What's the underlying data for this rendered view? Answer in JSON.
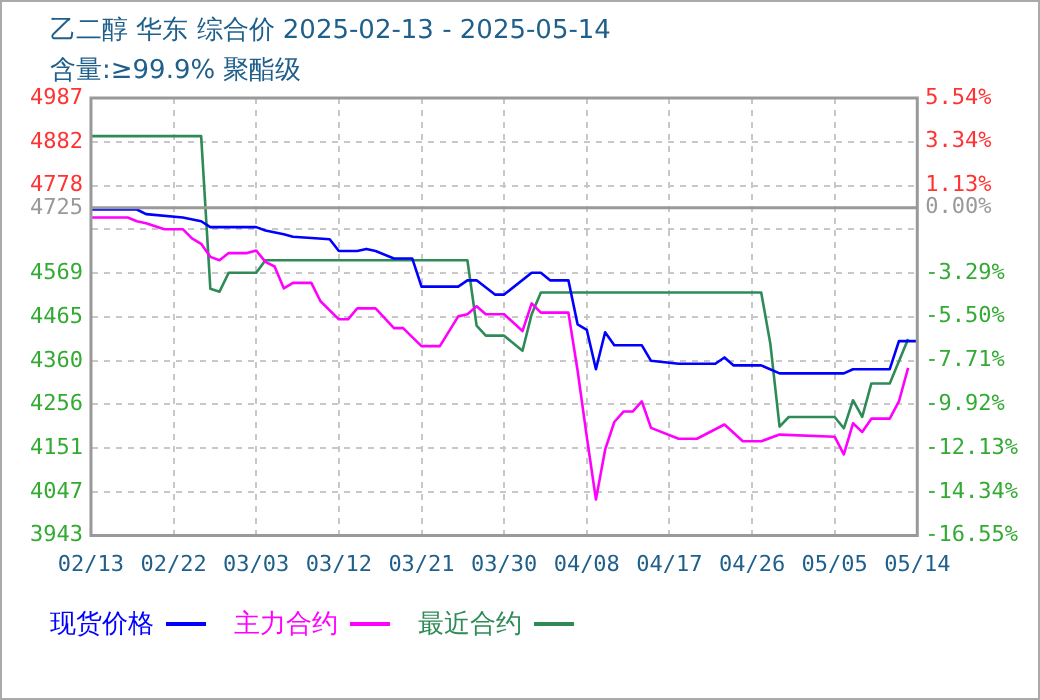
{
  "chart_data": {
    "type": "line",
    "title": "乙二醇 华东 综合价 2025-02-13 - 2025-05-14",
    "subtitle": "含量:≥99.9% 聚酯级",
    "xlim": [
      "2025-02-13",
      "2025-05-14"
    ],
    "xticks": [
      {
        "value": "2025-02-13",
        "label": "02/13"
      },
      {
        "value": "2025-02-22",
        "label": "02/22"
      },
      {
        "value": "2025-03-03",
        "label": "03/03"
      },
      {
        "value": "2025-03-12",
        "label": "03/12"
      },
      {
        "value": "2025-03-21",
        "label": "03/21"
      },
      {
        "value": "2025-03-30",
        "label": "03/30"
      },
      {
        "value": "2025-04-08",
        "label": "04/08"
      },
      {
        "value": "2025-04-17",
        "label": "04/17"
      },
      {
        "value": "2025-04-26",
        "label": "04/26"
      },
      {
        "value": "2025-05-05",
        "label": "05/05"
      },
      {
        "value": "2025-05-14",
        "label": "05/14"
      }
    ],
    "ylim": [
      3943,
      4987
    ],
    "yticks": [
      3943,
      4047,
      4151,
      4256,
      4360,
      4465,
      4569,
      {
        "value": 4674,
        "label": null
      },
      4725,
      4778,
      4882,
      4987
    ],
    "y2lim": [
      -16.55,
      5.54
    ],
    "y2ticks": [
      {
        "value": -16.55,
        "label": "-16.55%"
      },
      {
        "value": -14.34,
        "label": "-14.34%"
      },
      {
        "value": -12.13,
        "label": "-12.13%"
      },
      {
        "value": -9.92,
        "label": "-9.92%"
      },
      {
        "value": -7.71,
        "label": "-7.71%"
      },
      {
        "value": -5.5,
        "label": "-5.50%"
      },
      {
        "value": -3.29,
        "label": "-3.29%"
      },
      {
        "value": 0,
        "label": "0.00%"
      },
      {
        "value": 1.13,
        "label": "1.13%"
      },
      {
        "value": 3.34,
        "label": "3.34%"
      },
      {
        "value": 5.54,
        "label": "5.54%"
      }
    ],
    "ref_lines": [
      {
        "axis": "y",
        "value": 4725,
        "color": "#999999"
      }
    ],
    "grid": true,
    "legend": "bottom",
    "marker": "none",
    "line_style": "solid",
    "series": [
      {
        "name": "现货价格",
        "color": "#0000ff",
        "x": [
          "2025-02-13",
          "2025-02-18",
          "2025-02-19",
          "2025-02-23",
          "2025-02-25",
          "2025-02-26",
          "2025-03-03",
          "2025-03-04",
          "2025-03-06",
          "2025-03-07",
          "2025-03-11",
          "2025-03-12",
          "2025-03-14",
          "2025-03-15",
          "2025-03-16",
          "2025-03-18",
          "2025-03-20",
          "2025-03-21",
          "2025-03-25",
          "2025-03-26",
          "2025-03-27",
          "2025-03-29",
          "2025-03-30",
          "2025-04-02",
          "2025-04-03",
          "2025-04-04",
          "2025-04-06",
          "2025-04-07",
          "2025-04-08",
          "2025-04-09",
          "2025-04-10",
          "2025-04-11",
          "2025-04-14",
          "2025-04-15",
          "2025-04-18",
          "2025-04-22",
          "2025-04-23",
          "2025-04-24",
          "2025-04-27",
          "2025-04-29",
          "2025-05-06",
          "2025-05-07",
          "2025-05-11",
          "2025-05-12",
          "2025-05-14"
        ],
        "values": [
          4721,
          4721,
          4710,
          4702,
          4693,
          4679,
          4679,
          4671,
          4662,
          4656,
          4650,
          4622,
          4622,
          4627,
          4622,
          4604,
          4604,
          4537,
          4537,
          4552,
          4552,
          4518,
          4518,
          4570,
          4570,
          4552,
          4552,
          4447,
          4434,
          4340,
          4428,
          4397,
          4397,
          4360,
          4353,
          4353,
          4368,
          4349,
          4349,
          4330,
          4330,
          4340,
          4340,
          4407,
          4407
        ]
      },
      {
        "name": "主力合约",
        "color": "#ff00ff",
        "x": [
          "2025-02-13",
          "2025-02-17",
          "2025-02-18",
          "2025-02-19",
          "2025-02-21",
          "2025-02-23",
          "2025-02-24",
          "2025-02-25",
          "2025-02-26",
          "2025-02-27",
          "2025-02-28",
          "2025-03-02",
          "2025-03-03",
          "2025-03-04",
          "2025-03-05",
          "2025-03-06",
          "2025-03-07",
          "2025-03-09",
          "2025-03-10",
          "2025-03-12",
          "2025-03-13",
          "2025-03-14",
          "2025-03-16",
          "2025-03-18",
          "2025-03-19",
          "2025-03-21",
          "2025-03-23",
          "2025-03-25",
          "2025-03-26",
          "2025-03-27",
          "2025-03-28",
          "2025-03-30",
          "2025-04-01",
          "2025-04-02",
          "2025-04-03",
          "2025-04-06",
          "2025-04-07",
          "2025-04-08",
          "2025-04-09",
          "2025-04-10",
          "2025-04-11",
          "2025-04-12",
          "2025-04-13",
          "2025-04-14",
          "2025-04-15",
          "2025-04-18",
          "2025-04-20",
          "2025-04-23",
          "2025-04-25",
          "2025-04-27",
          "2025-04-29",
          "2025-05-05",
          "2025-05-06",
          "2025-05-07",
          "2025-05-08",
          "2025-05-09",
          "2025-05-11",
          "2025-05-12",
          "2025-05-13"
        ],
        "values": [
          4702,
          4702,
          4693,
          4688,
          4674,
          4674,
          4652,
          4639,
          4608,
          4600,
          4617,
          4617,
          4623,
          4596,
          4585,
          4533,
          4546,
          4546,
          4502,
          4459,
          4459,
          4485,
          4485,
          4438,
          4438,
          4395,
          4395,
          4466,
          4471,
          4490,
          4471,
          4471,
          4431,
          4497,
          4475,
          4475,
          4337,
          4179,
          4029,
          4148,
          4214,
          4239,
          4239,
          4263,
          4200,
          4174,
          4174,
          4208,
          4168,
          4168,
          4184,
          4179,
          4137,
          4211,
          4190,
          4222,
          4222,
          4263,
          4343
        ]
      },
      {
        "name": "最近合约",
        "color": "#2e8b57",
        "x": [
          "2025-02-13",
          "2025-02-25",
          "2025-02-26",
          "2025-02-27",
          "2025-02-28",
          "2025-03-03",
          "2025-03-04",
          "2025-03-26",
          "2025-03-27",
          "2025-03-28",
          "2025-03-30",
          "2025-04-01",
          "2025-04-02",
          "2025-04-03",
          "2025-04-27",
          "2025-04-28",
          "2025-04-29",
          "2025-04-30",
          "2025-05-05",
          "2025-05-06",
          "2025-05-07",
          "2025-05-08",
          "2025-05-09",
          "2025-05-11",
          "2025-05-13"
        ],
        "values": [
          4896,
          4896,
          4532,
          4525,
          4570,
          4570,
          4600,
          4600,
          4444,
          4420,
          4420,
          4384,
          4471,
          4523,
          4523,
          4400,
          4203,
          4226,
          4226,
          4199,
          4266,
          4226,
          4306,
          4306,
          4412
        ]
      }
    ]
  }
}
